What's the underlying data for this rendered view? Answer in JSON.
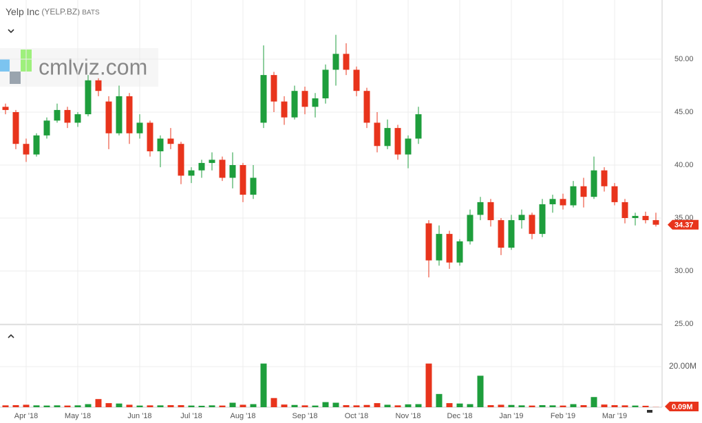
{
  "chart_data": {
    "type": "candlestick",
    "title": "Yelp Inc",
    "subtitle": "(YELP.BZ)",
    "exchange": "BATS",
    "watermark": "cmlviz.com",
    "categories": [
      null,
      null,
      "Apr '18",
      null,
      null,
      null,
      null,
      "May '18",
      null,
      null,
      null,
      null,
      null,
      "Jun '18",
      null,
      null,
      null,
      null,
      "Jul '18",
      null,
      null,
      null,
      null,
      "Aug '18",
      null,
      null,
      null,
      null,
      null,
      "Sep '18",
      null,
      null,
      null,
      null,
      "Oct '18",
      null,
      null,
      null,
      null,
      "Nov '18",
      null,
      null,
      null,
      null,
      "Dec '18",
      null,
      null,
      null,
      null,
      "Jan '19",
      null,
      null,
      null,
      null,
      "Feb '19",
      null,
      null,
      null,
      null,
      "Mar '19",
      null,
      null,
      null,
      null
    ],
    "open": [
      45.5,
      45,
      42,
      41,
      42.8,
      44.2,
      45.2,
      44,
      44.8,
      48,
      46,
      43,
      46.5,
      43,
      44,
      41.3,
      42.5,
      42,
      39,
      39.5,
      40.2,
      40.5,
      38.8,
      40,
      37.2,
      44,
      48.5,
      46,
      44.5,
      47,
      45.5,
      46.3,
      49,
      50.5,
      49,
      47,
      44,
      41.8,
      43.5,
      41,
      42.5,
      34.5,
      31,
      33.5,
      30.8,
      32.8,
      35.3,
      36.5,
      34.8,
      32.2,
      34.8,
      35.3,
      33.5,
      36.3,
      36.8,
      36.2,
      38,
      37,
      39.5,
      38,
      36.5,
      35,
      35.2,
      34.8
    ],
    "high": [
      45.8,
      45.2,
      42.5,
      43,
      44.5,
      45.8,
      45.5,
      45,
      48.5,
      48.2,
      46.5,
      47.5,
      46.8,
      44.8,
      44.2,
      42.8,
      43.5,
      42.2,
      39.8,
      40.5,
      41.2,
      40.8,
      41.2,
      40.2,
      40,
      51.3,
      48.8,
      46.5,
      47.5,
      47.4,
      46.8,
      49.5,
      52.3,
      51.5,
      49.3,
      47.3,
      45,
      44.3,
      43.8,
      42.8,
      45.5,
      34.8,
      34.3,
      33.8,
      33,
      35.8,
      37,
      36.8,
      35,
      35.3,
      35.8,
      35.5,
      36.8,
      37.2,
      37.3,
      38.5,
      38.8,
      40.8,
      39.8,
      38.3,
      36.8,
      35.5,
      35.6,
      35.5
    ],
    "low": [
      44.8,
      41.5,
      40.3,
      40.8,
      42.5,
      44,
      43.5,
      43.6,
      44.6,
      46.5,
      41.5,
      42.8,
      42,
      42.5,
      40.8,
      39.8,
      41.5,
      38.2,
      38.3,
      38.8,
      39.5,
      38.5,
      37.8,
      36.5,
      36.8,
      43.5,
      45,
      43.8,
      44.3,
      44.8,
      44.5,
      45.8,
      47.5,
      48.5,
      46.5,
      43.5,
      41.2,
      41.5,
      40.5,
      39.7,
      42,
      29.4,
      30.5,
      30.2,
      30.5,
      32.5,
      34.8,
      34.2,
      31.5,
      32,
      34,
      33,
      33.2,
      35.5,
      35.8,
      36,
      36,
      36.8,
      37.5,
      36.2,
      34.5,
      34.3,
      34.5,
      34.2
    ],
    "close": [
      45.2,
      42,
      41,
      42.8,
      44.2,
      45.2,
      44,
      44.8,
      48,
      47,
      43,
      46.5,
      43,
      44,
      41.3,
      42.5,
      42,
      39,
      39.5,
      40.2,
      40.5,
      38.8,
      40,
      37.2,
      38.8,
      48.5,
      46,
      44.5,
      47,
      45.5,
      46.3,
      49,
      50.5,
      49,
      47,
      44,
      41.8,
      43.5,
      41,
      42.5,
      44.8,
      31,
      33.5,
      30.8,
      32.8,
      35.3,
      36.5,
      34.8,
      32.2,
      34.8,
      35.3,
      33.5,
      36.3,
      36.8,
      36.2,
      38,
      37,
      39.5,
      38,
      36.5,
      35,
      35.2,
      34.8,
      34.37
    ],
    "volume": [
      0.9,
      1.0,
      1.2,
      0.9,
      0.8,
      0.9,
      0.8,
      0.9,
      1.5,
      4.0,
      2.0,
      1.8,
      1.2,
      0.8,
      0.9,
      0.9,
      1.0,
      1.0,
      0.8,
      0.7,
      0.9,
      0.8,
      2.2,
      1.2,
      1.5,
      21.5,
      4.5,
      1.3,
      1.1,
      0.9,
      0.8,
      2.5,
      2.2,
      1.0,
      0.9,
      1.1,
      2.0,
      1.2,
      0.9,
      1.4,
      1.5,
      21.5,
      6.5,
      2.0,
      1.8,
      1.5,
      15.5,
      1.0,
      1.2,
      1.1,
      0.9,
      0.8,
      1.0,
      0.9,
      0.8,
      1.5,
      1.0,
      5.0,
      1.3,
      1.0,
      0.9,
      0.8,
      0.7,
      0.09
    ],
    "volume_value_labels": [
      null,
      null,
      null,
      null,
      null,
      null,
      null,
      null,
      null,
      null,
      null,
      null,
      null,
      null,
      null,
      null,
      null,
      null,
      null,
      null,
      null,
      null,
      null,
      null,
      null,
      null,
      null,
      null,
      null,
      null,
      null,
      null,
      null,
      null,
      null,
      null,
      null,
      null,
      null,
      null,
      null,
      null,
      null,
      null,
      null,
      null,
      null,
      null,
      null,
      null,
      null,
      null,
      null,
      null,
      null,
      null,
      null,
      null,
      null,
      null,
      null,
      null,
      null,
      "0.09M"
    ],
    "up_color": "#1e9e3c",
    "down_color": "#e8341c",
    "ylim": [
      25,
      55
    ],
    "yticks": [
      {
        "value": 25,
        "label": "25.00"
      },
      {
        "value": 30,
        "label": "30.00"
      },
      {
        "value": 35,
        "label": "35.00"
      },
      {
        "value": 40,
        "label": "40.00"
      },
      {
        "value": 45,
        "label": "45.00"
      },
      {
        "value": 50,
        "label": "50.00"
      }
    ],
    "y2lim": [
      0,
      40
    ],
    "y2ticks": [
      {
        "value": 20,
        "label": "20.00M"
      }
    ],
    "grid": true
  }
}
